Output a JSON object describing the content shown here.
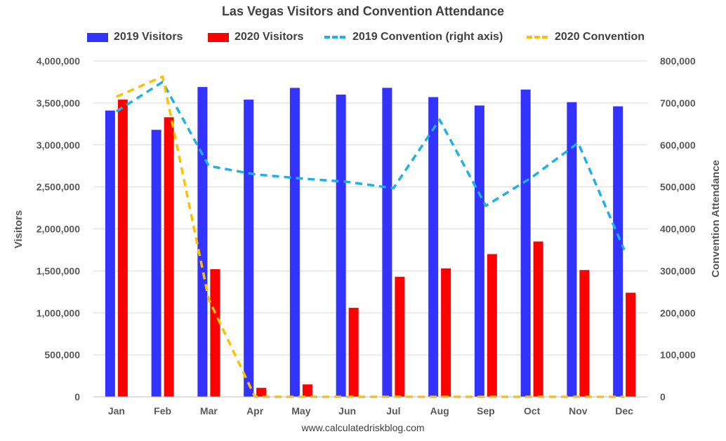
{
  "chart_data": {
    "type": "bar",
    "title": "Las Vegas Visitors and Convention Attendance",
    "categories": [
      "Jan",
      "Feb",
      "Mar",
      "Apr",
      "May",
      "Jun",
      "Jul",
      "Aug",
      "Sep",
      "Oct",
      "Nov",
      "Dec"
    ],
    "series": [
      {
        "name": "2019 Visitors",
        "kind": "bar",
        "axis": "left",
        "color": "#3333ff",
        "values": [
          3410000,
          3180000,
          3690000,
          3540000,
          3680000,
          3600000,
          3680000,
          3570000,
          3470000,
          3660000,
          3510000,
          3460000
        ]
      },
      {
        "name": "2020 Visitors",
        "kind": "bar",
        "axis": "left",
        "color": "#ff0000",
        "values": [
          3540000,
          3330000,
          1520000,
          107000,
          148000,
          1060000,
          1430000,
          1530000,
          1700000,
          1850000,
          1510000,
          1240000
        ]
      },
      {
        "name": "2019 Convention (right axis)",
        "kind": "line",
        "axis": "right",
        "color": "#1fb0e8",
        "values": [
          680000,
          750000,
          550000,
          530000,
          520000,
          512000,
          497000,
          660000,
          455000,
          523000,
          605000,
          350000
        ]
      },
      {
        "name": "2020 Convention",
        "kind": "line",
        "axis": "right",
        "color": "#ffc000",
        "values": [
          715000,
          763000,
          232000,
          0,
          0,
          0,
          0,
          0,
          0,
          0,
          0,
          0
        ]
      }
    ],
    "ylabel": "Visitors",
    "y2label": "Convention Attendance",
    "ylim": [
      0,
      4000000
    ],
    "y2lim": [
      0,
      800000
    ],
    "yticks": [
      "0",
      "500,000",
      "1,000,000",
      "1,500,000",
      "2,000,000",
      "2,500,000",
      "3,000,000",
      "3,500,000",
      "4,000,000"
    ],
    "y2ticks": [
      "0",
      "100,000",
      "200,000",
      "300,000",
      "400,000",
      "500,000",
      "600,000",
      "700,000",
      "800,000"
    ],
    "grid": true,
    "legend_position": "top"
  },
  "source_note": "www.calculatedriskblog.com"
}
